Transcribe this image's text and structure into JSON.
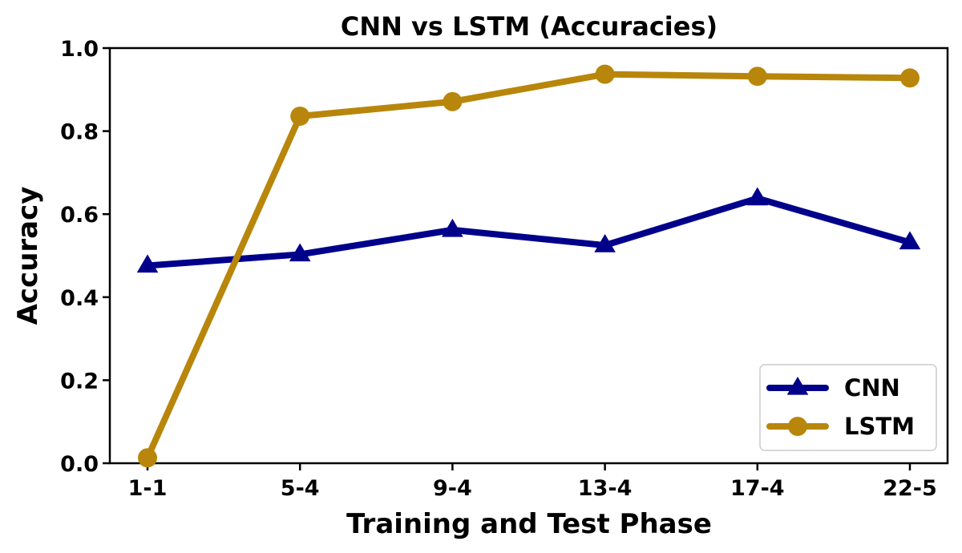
{
  "chart_data": {
    "type": "line",
    "title": "CNN vs LSTM (Accuracies)",
    "xlabel": "Training and Test Phase",
    "ylabel": "Accuracy",
    "categories": [
      "1-1",
      "5-4",
      "9-4",
      "13-4",
      "17-4",
      "22-5"
    ],
    "ylim": [
      0.0,
      1.0
    ],
    "yticks": [
      "0.0",
      "0.2",
      "0.4",
      "0.6",
      "0.8",
      "1.0"
    ],
    "grid": false,
    "legend_position": "lower-right",
    "series": [
      {
        "name": "CNN",
        "color": "#00008b",
        "marker": "triangle",
        "values": [
          0.476,
          0.503,
          0.562,
          0.525,
          0.638,
          0.532
        ]
      },
      {
        "name": "LSTM",
        "color": "#b8860b",
        "marker": "circle",
        "values": [
          0.013,
          0.836,
          0.871,
          0.937,
          0.932,
          0.928
        ]
      }
    ]
  }
}
